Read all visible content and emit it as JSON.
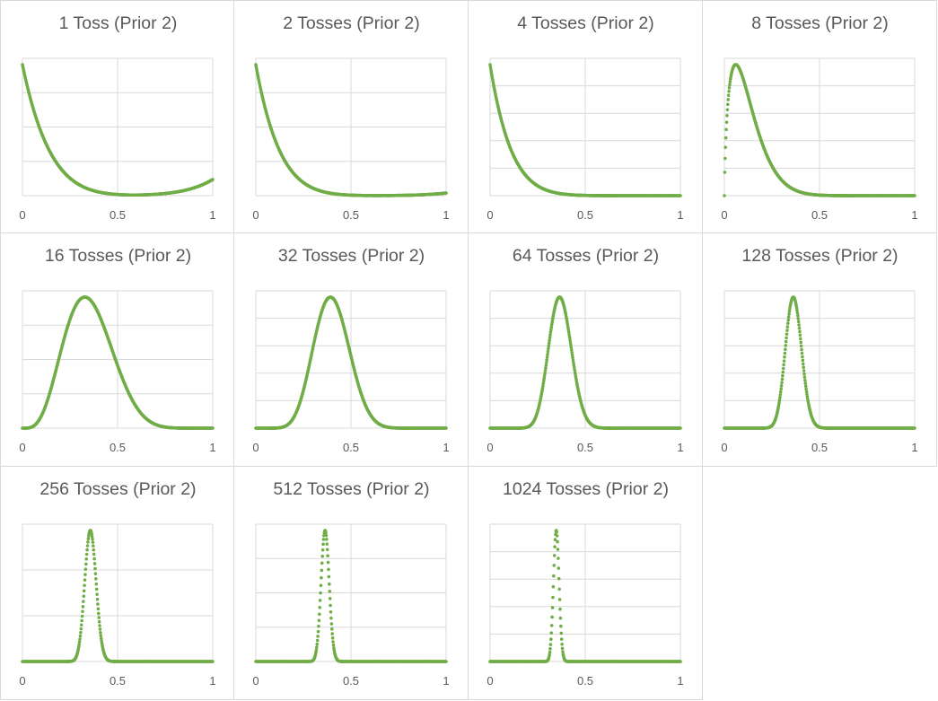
{
  "colors": {
    "series": "#70ad47",
    "grid": "#d9d9d9",
    "text": "#595959"
  },
  "chart_data": [
    {
      "type": "scatter",
      "title": "1 Toss (Prior 2)",
      "x_ticks": [
        "0",
        "0.5",
        "1"
      ],
      "xlim": [
        0,
        1
      ],
      "grid": true,
      "series": [
        {
          "type": "beta_mixture",
          "components": [
            {
              "w": 0.89,
              "a": 1,
              "b": 8
            },
            {
              "w": 0.11,
              "a": 8,
              "b": 1
            }
          ]
        }
      ]
    },
    {
      "type": "scatter",
      "title": "2 Tosses (Prior 2)",
      "x_ticks": [
        "0",
        "0.5",
        "1"
      ],
      "xlim": [
        0,
        1
      ],
      "grid": true,
      "series": [
        {
          "type": "beta_mixture",
          "components": [
            {
              "w": 0.98,
              "a": 1,
              "b": 9
            },
            {
              "w": 0.02,
              "a": 9,
              "b": 1
            }
          ]
        }
      ]
    },
    {
      "type": "scatter",
      "title": "4 Tosses  (Prior 2)",
      "x_ticks": [
        "0",
        "0.5",
        "1"
      ],
      "xlim": [
        0,
        1
      ],
      "grid": true,
      "series": [
        {
          "type": "beta_mixture",
          "components": [
            {
              "w": 1,
              "a": 1,
              "b": 10
            }
          ]
        }
      ]
    },
    {
      "type": "scatter",
      "title": "8 Tosses  (Prior 2)",
      "x_ticks": [
        "0",
        "0.5",
        "1"
      ],
      "xlim": [
        0,
        1
      ],
      "grid": true,
      "series": [
        {
          "type": "beta_mixture",
          "components": [
            {
              "w": 1,
              "a": 1.7,
              "b": 12
            }
          ]
        }
      ]
    },
    {
      "type": "scatter",
      "title": "16 Tosses  (Prior 2)",
      "x_ticks": [
        "0",
        "0.5",
        "1"
      ],
      "xlim": [
        0,
        1
      ],
      "grid": true,
      "series": [
        {
          "type": "beta_mixture",
          "components": [
            {
              "w": 1,
              "a": 5,
              "b": 9.2
            }
          ]
        }
      ]
    },
    {
      "type": "scatter",
      "title": "32 Tosses  (Prior 2)",
      "x_ticks": [
        "0",
        "0.5",
        "1"
      ],
      "xlim": [
        0,
        1
      ],
      "grid": true,
      "series": [
        {
          "type": "beta_mixture",
          "components": [
            {
              "w": 1,
              "a": 11,
              "b": 16.5
            }
          ]
        }
      ]
    },
    {
      "type": "scatter",
      "title": "64 Tosses  (Prior 2)",
      "x_ticks": [
        "0",
        "0.5",
        "1"
      ],
      "xlim": [
        0,
        1
      ],
      "grid": true,
      "series": [
        {
          "type": "beta_mixture",
          "components": [
            {
              "w": 1,
              "a": 24,
              "b": 41
            }
          ]
        }
      ]
    },
    {
      "type": "scatter",
      "title": "128 Tosses  (Prior 2)",
      "x_ticks": [
        "0",
        "0.5",
        "1"
      ],
      "xlim": [
        0,
        1
      ],
      "grid": true,
      "series": [
        {
          "type": "beta_mixture",
          "components": [
            {
              "w": 1,
              "a": 47,
              "b": 82
            }
          ]
        }
      ]
    },
    {
      "type": "scatter",
      "title": "256 Tosses  (Prior 2)",
      "x_ticks": [
        "0",
        "0.5",
        "1"
      ],
      "xlim": [
        0,
        1
      ],
      "grid": true,
      "series": [
        {
          "type": "beta_mixture",
          "components": [
            {
              "w": 1,
              "a": 92,
              "b": 165
            }
          ]
        }
      ]
    },
    {
      "type": "scatter",
      "title": "512 Tosses  (Prior 2)",
      "x_ticks": [
        "0",
        "0.5",
        "1"
      ],
      "xlim": [
        0,
        1
      ],
      "grid": true,
      "series": [
        {
          "type": "beta_mixture",
          "components": [
            {
              "w": 1,
              "a": 187,
              "b": 326
            }
          ]
        }
      ]
    },
    {
      "type": "scatter",
      "title": "1024 Tosses (Prior 2)",
      "x_ticks": [
        "0",
        "0.5",
        "1"
      ],
      "xlim": [
        0,
        1
      ],
      "grid": true,
      "series": [
        {
          "type": "beta_mixture",
          "components": [
            {
              "w": 1,
              "a": 357,
              "b": 669
            }
          ]
        }
      ]
    }
  ]
}
